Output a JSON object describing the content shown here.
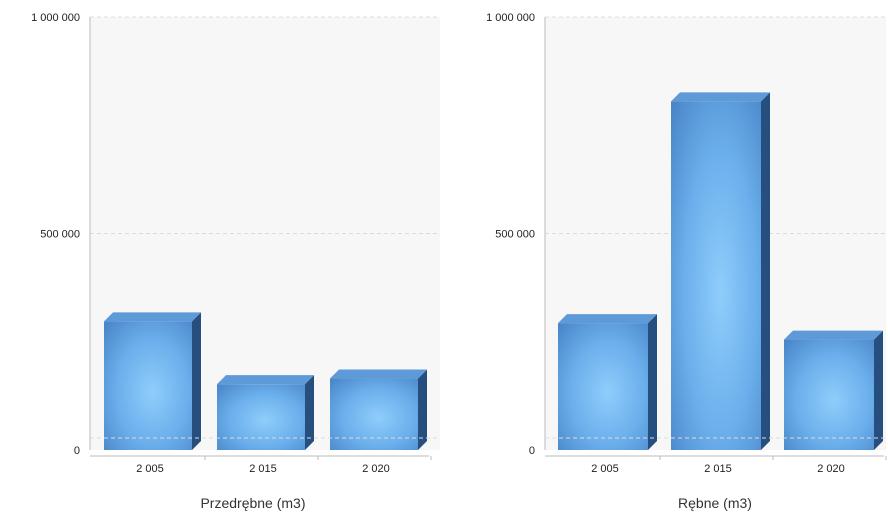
{
  "chart_data": [
    {
      "type": "bar",
      "title": "",
      "xlabel": "Przedrębne (m3)",
      "ylabel": "",
      "categories": [
        "2 005",
        "2 015",
        "2 020"
      ],
      "values": [
        297000,
        152000,
        165000
      ],
      "ylim": [
        0,
        1000000
      ],
      "yticks": [
        0,
        500000,
        1000000
      ],
      "ytick_labels": [
        "0",
        "500 000",
        "1 000 000"
      ],
      "grid": true
    },
    {
      "type": "bar",
      "title": "",
      "xlabel": "Rębne (m3)",
      "ylabel": "",
      "categories": [
        "2 005",
        "2 015",
        "2 020"
      ],
      "values": [
        293000,
        805000,
        255000
      ],
      "ylim": [
        0,
        1000000
      ],
      "yticks": [
        0,
        500000,
        1000000
      ],
      "ytick_labels": [
        "0",
        "500 000",
        "1 000 000"
      ],
      "grid": true
    }
  ],
  "colors": {
    "bar_front_light": "#8fcdfb",
    "bar_front_mid": "#6aaeeb",
    "bar_front_dark": "#4a86c8",
    "bar_top": "#5f9ad8",
    "bar_side": "#264f7f",
    "plot_bg": "#f7f7f7",
    "grid": "#dcdcdc",
    "axis": "#bbbbbb"
  }
}
